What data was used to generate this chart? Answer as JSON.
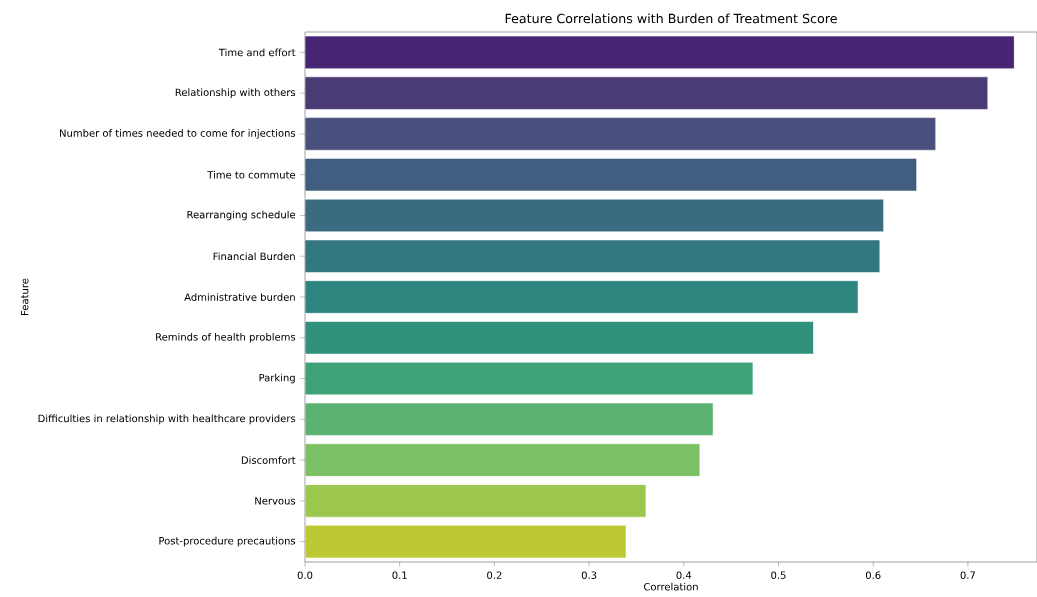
{
  "chart_data": {
    "type": "bar",
    "orientation": "horizontal",
    "title": "Feature Correlations with Burden of Treatment Score",
    "xlabel": "Correlation",
    "ylabel": "Feature",
    "categories": [
      "Time and effort",
      "Relationship with others",
      "Number of times needed to come for injections",
      "Time to commute",
      "Rearranging schedule",
      "Financial Burden",
      "Administrative burden",
      "Reminds of health problems",
      "Parking",
      "Difficulties in relationship with healthcare providers",
      "Discomfort",
      "Nervous",
      "Post-procedure precautions"
    ],
    "values": [
      0.749,
      0.721,
      0.666,
      0.646,
      0.611,
      0.607,
      0.584,
      0.537,
      0.473,
      0.431,
      0.417,
      0.36,
      0.339
    ],
    "colors": [
      "#482475",
      "#4a3b74",
      "#4a507d",
      "#415e80",
      "#3a6b80",
      "#337880",
      "#2e8580",
      "#31927c",
      "#3ea278",
      "#5ab273",
      "#7bc064",
      "#9bc74e",
      "#bcc935"
    ],
    "xlim": [
      0,
      0.773
    ],
    "xticks": [
      {
        "value": 0,
        "label": "0.0"
      },
      0.1,
      0.2,
      0.3,
      0.4,
      0.5,
      0.6,
      0.7
    ]
  }
}
